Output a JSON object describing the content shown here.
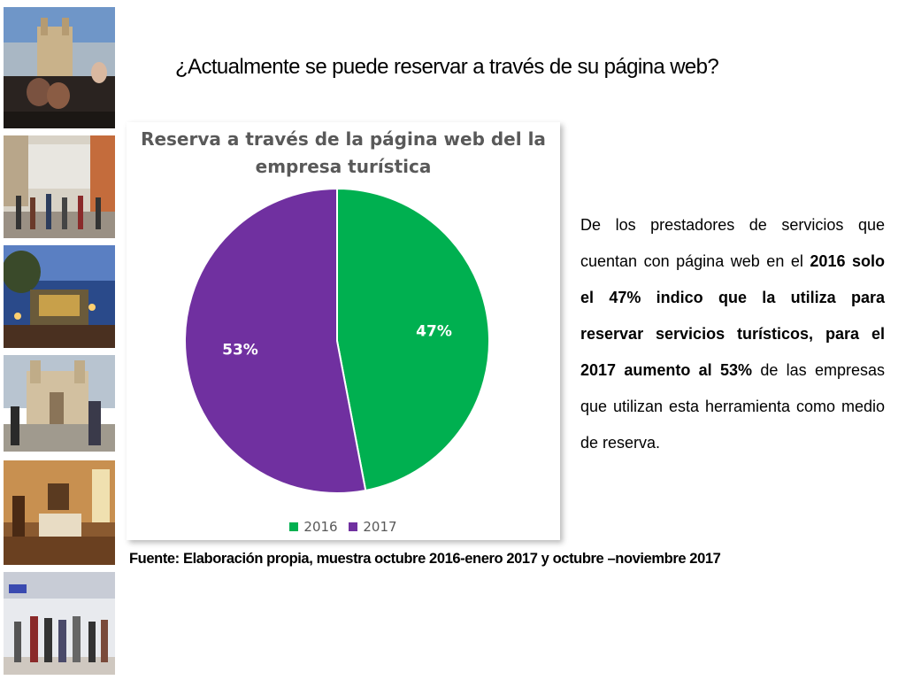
{
  "slide": {
    "title": "¿Actualmente se puede reservar a través de su página web?",
    "source": "Fuente: Elaboración propia, muestra octubre 2016-enero 2017 y octubre –noviembre 2017"
  },
  "description": {
    "p1": "De los prestadores de servicios que cuentan con página web en el ",
    "b1": "2016 solo el 47% indico que la utiliza para reservar servicios turísticos, para el 2017 aumento al 53%",
    "p2": " de las empresas que utilizan esta herramienta como medio de reserva."
  },
  "chart_data": {
    "type": "pie",
    "title_line1": "Reserva a través de la página web del la",
    "title_line2": "empresa turística",
    "legend_position": "bottom",
    "slices": [
      {
        "label": "2016",
        "value": 47,
        "value_label": "47%",
        "color": "#00B050"
      },
      {
        "label": "2017",
        "value": 53,
        "value_label": "53%",
        "color": "#7030A0"
      }
    ]
  }
}
